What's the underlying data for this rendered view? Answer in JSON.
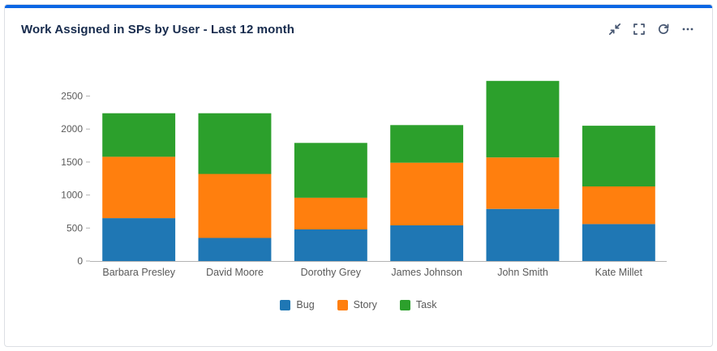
{
  "card": {
    "title": "Work Assigned in SPs by User - Last 12 month",
    "accent_color": "#0c66e4"
  },
  "toolbar": {
    "icons": [
      "collapse",
      "fullscreen",
      "refresh",
      "more-options"
    ]
  },
  "chart_data": {
    "type": "bar",
    "stacked": true,
    "title": "Work Assigned in SPs by User - Last 12 month",
    "xlabel": "",
    "ylabel": "",
    "categories": [
      "Barbara Presley",
      "David Moore",
      "Dorothy Grey",
      "James Johnson",
      "John Smith",
      "Kate Millet"
    ],
    "series": [
      {
        "name": "Bug",
        "color": "#1f77b4",
        "values": [
          650,
          350,
          480,
          540,
          790,
          560
        ]
      },
      {
        "name": "Story",
        "color": "#ff7f0e",
        "values": [
          930,
          970,
          480,
          950,
          780,
          570
        ]
      },
      {
        "name": "Task",
        "color": "#2ca02c",
        "values": [
          660,
          920,
          830,
          570,
          1160,
          920
        ]
      }
    ],
    "totals": [
      2240,
      2240,
      1790,
      2060,
      2730,
      2050
    ],
    "yticks": [
      0,
      500,
      1000,
      1500,
      2000,
      2500
    ],
    "ylim": [
      0,
      2850
    ],
    "grid": false,
    "legend_position": "bottom"
  }
}
